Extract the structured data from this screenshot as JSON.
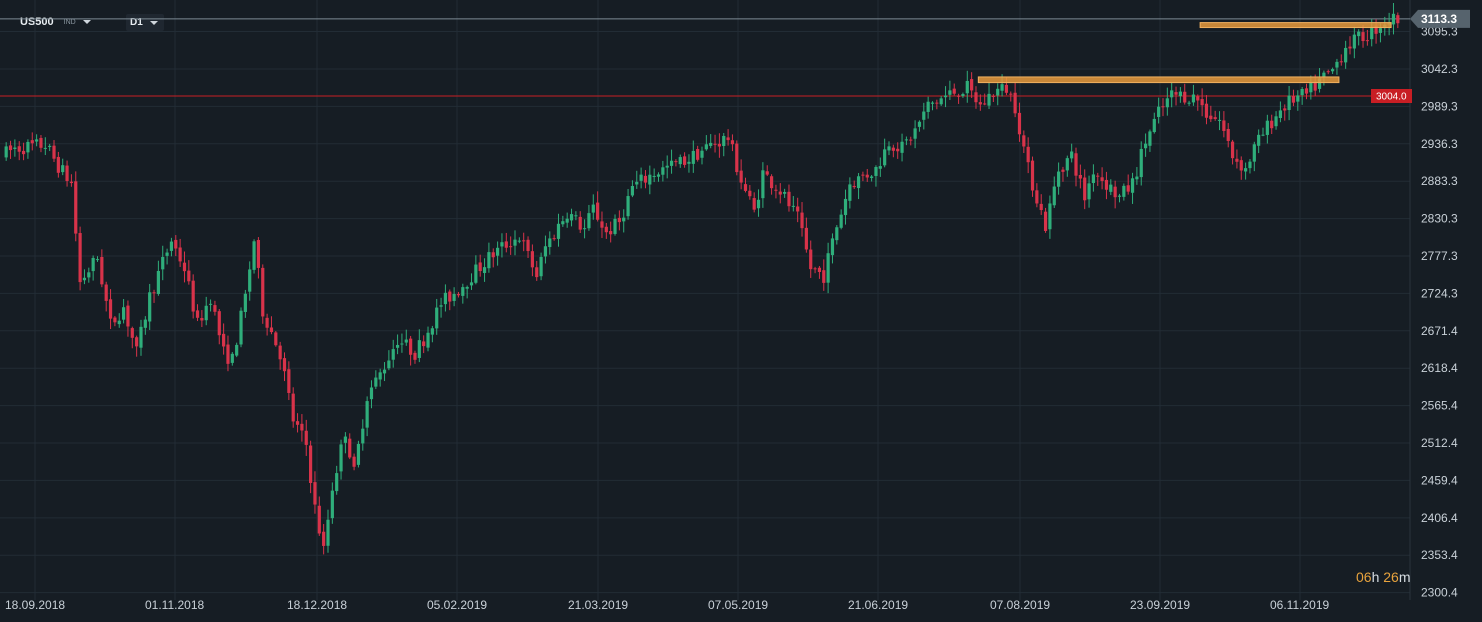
{
  "toolbar": {
    "symbol": "US500",
    "symbol_type": "IND",
    "timeframe": "D1"
  },
  "timer": {
    "hours": "06",
    "h_unit": "h",
    "minutes": "26",
    "m_unit": "m"
  },
  "colors": {
    "background": "#161d24",
    "grid": "#222c35",
    "bull": "#2fae7b",
    "bear": "#d8334a",
    "price_line": "#7c8a94",
    "level_line": "#c81e24",
    "zone": "#e89a3c"
  },
  "chart_data": {
    "type": "candlestick",
    "instrument": "US500",
    "timeframe": "D1",
    "ylim": [
      2290,
      3140
    ],
    "yticks": [
      2300.4,
      2353.4,
      2406.4,
      2459.4,
      2512.4,
      2565.4,
      2618.4,
      2671.4,
      2724.3,
      2777.3,
      2830.3,
      2883.3,
      2936.3,
      2989.3,
      3042.3,
      3095.3
    ],
    "xticks": [
      "18.09.2018",
      "01.11.2018",
      "18.12.2018",
      "05.02.2019",
      "21.03.2019",
      "07.05.2019",
      "21.06.2019",
      "07.08.2019",
      "23.09.2019",
      "06.11.2019"
    ],
    "current_price": 3113.3,
    "horizontal_level": 3004.0,
    "resistance_zones": [
      {
        "bar_start": 224,
        "bar_end": 306,
        "price_low": 3023,
        "price_high": 3031
      },
      {
        "bar_start": 275,
        "bar_end": 318,
        "price_low": 3101,
        "price_high": 3108
      }
    ],
    "anchors": [
      [
        0,
        2920
      ],
      [
        3,
        2930
      ],
      [
        10,
        2935
      ],
      [
        13,
        2905
      ],
      [
        16,
        2880
      ],
      [
        18,
        2740
      ],
      [
        22,
        2775
      ],
      [
        25,
        2680
      ],
      [
        28,
        2705
      ],
      [
        31,
        2640
      ],
      [
        34,
        2720
      ],
      [
        39,
        2800
      ],
      [
        42,
        2760
      ],
      [
        45,
        2680
      ],
      [
        48,
        2720
      ],
      [
        51,
        2640
      ],
      [
        53,
        2630
      ],
      [
        56,
        2720
      ],
      [
        58,
        2800
      ],
      [
        60,
        2700
      ],
      [
        64,
        2640
      ],
      [
        67,
        2545
      ],
      [
        70,
        2510
      ],
      [
        72,
        2420
      ],
      [
        74,
        2360
      ],
      [
        76,
        2450
      ],
      [
        79,
        2530
      ],
      [
        81,
        2470
      ],
      [
        84,
        2580
      ],
      [
        87,
        2610
      ],
      [
        91,
        2660
      ],
      [
        95,
        2640
      ],
      [
        97,
        2660
      ],
      [
        101,
        2710
      ],
      [
        105,
        2730
      ],
      [
        108,
        2750
      ],
      [
        112,
        2775
      ],
      [
        115,
        2790
      ],
      [
        119,
        2805
      ],
      [
        123,
        2750
      ],
      [
        125,
        2790
      ],
      [
        130,
        2840
      ],
      [
        134,
        2815
      ],
      [
        136,
        2845
      ],
      [
        139,
        2810
      ],
      [
        142,
        2825
      ],
      [
        145,
        2875
      ],
      [
        150,
        2895
      ],
      [
        154,
        2905
      ],
      [
        158,
        2915
      ],
      [
        163,
        2935
      ],
      [
        167,
        2945
      ],
      [
        170,
        2885
      ],
      [
        173,
        2840
      ],
      [
        175,
        2895
      ],
      [
        179,
        2870
      ],
      [
        183,
        2830
      ],
      [
        186,
        2760
      ],
      [
        189,
        2750
      ],
      [
        192,
        2820
      ],
      [
        195,
        2880
      ],
      [
        198,
        2890
      ],
      [
        201,
        2900
      ],
      [
        204,
        2940
      ],
      [
        207,
        2930
      ],
      [
        210,
        2955
      ],
      [
        213,
        2990
      ],
      [
        216,
        3000
      ],
      [
        219,
        3010
      ],
      [
        222,
        3015
      ],
      [
        225,
        2990
      ],
      [
        228,
        3010
      ],
      [
        231,
        3015
      ],
      [
        233,
        2990
      ],
      [
        236,
        2900
      ],
      [
        238,
        2860
      ],
      [
        240,
        2820
      ],
      [
        243,
        2900
      ],
      [
        246,
        2920
      ],
      [
        249,
        2860
      ],
      [
        251,
        2900
      ],
      [
        254,
        2880
      ],
      [
        257,
        2860
      ],
      [
        260,
        2880
      ],
      [
        263,
        2940
      ],
      [
        266,
        2980
      ],
      [
        269,
        3005
      ],
      [
        272,
        3005
      ],
      [
        275,
        3000
      ],
      [
        277,
        2980
      ],
      [
        280,
        2970
      ],
      [
        283,
        2920
      ],
      [
        286,
        2900
      ],
      [
        288,
        2930
      ],
      [
        291,
        2960
      ],
      [
        294,
        2985
      ],
      [
        297,
        3000
      ],
      [
        300,
        3005
      ],
      [
        303,
        3025
      ],
      [
        306,
        3040
      ],
      [
        309,
        3075
      ],
      [
        312,
        3085
      ],
      [
        315,
        3095
      ],
      [
        318,
        3110
      ],
      [
        320,
        3113.3
      ]
    ]
  }
}
